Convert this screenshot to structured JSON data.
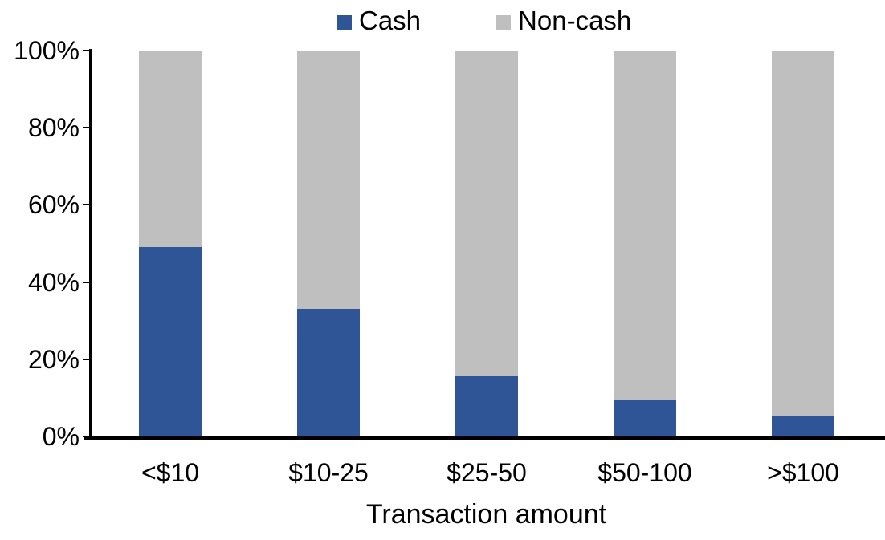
{
  "chart_data": {
    "type": "bar",
    "stacked": true,
    "units": "percent",
    "title": "",
    "xlabel": "Transaction amount",
    "ylabel": "",
    "categories": [
      "<$10",
      "$10-25",
      "$25-50",
      "$50-100",
      ">$100"
    ],
    "series": [
      {
        "name": "Cash",
        "color": "#2F5597",
        "values": [
          49,
          33,
          15.5,
          9.5,
          5.5
        ]
      },
      {
        "name": "Non-cash",
        "color": "#BFBFBF",
        "values": [
          51,
          67,
          84.5,
          90.5,
          94.5
        ]
      }
    ],
    "y_tick_labels": [
      "0%",
      "20%",
      "40%",
      "60%",
      "80%",
      "100%"
    ],
    "ylim": [
      0,
      100
    ],
    "grid": false,
    "legend_position": "top",
    "axis_color": "#000000"
  }
}
